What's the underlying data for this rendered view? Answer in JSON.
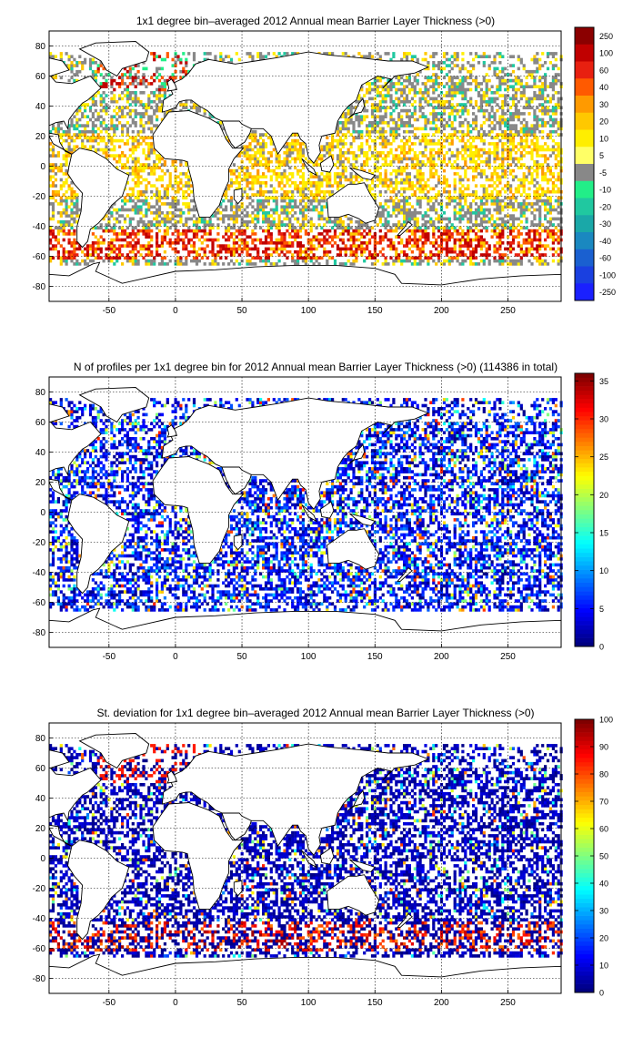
{
  "figure": {
    "panels": [
      {
        "id": "mean",
        "title": "1x1 degree bin–averaged 2012 Annual mean Barrier Layer Thickness (>0)",
        "colorbar": {
          "labels": [
            "250",
            "100",
            "60",
            "40",
            "30",
            "20",
            "10",
            "5",
            "-5",
            "-10",
            "-20",
            "-30",
            "-40",
            "-60",
            "-100",
            "-250"
          ],
          "colors": [
            "#8b0000",
            "#c00000",
            "#e82010",
            "#ff5a00",
            "#ff9a00",
            "#ffc800",
            "#ffee00",
            "#ffff66",
            "#888888",
            "#22ee88",
            "#20c8a0",
            "#1aa8a8",
            "#1a88c0",
            "#1a60d0",
            "#1a40e0",
            "#1a20ff"
          ]
        }
      },
      {
        "id": "count",
        "title": "N of profiles per 1x1 degree bin for 2012 Annual mean Barrier Layer Thickness (>0) (114386 in total)",
        "colorbar": {
          "ticks": [
            "0",
            "5",
            "10",
            "15",
            "20",
            "25",
            "30",
            "35"
          ],
          "max": 36
        }
      },
      {
        "id": "std",
        "title": "St. deviation for 1x1 degree bin–averaged 2012 Annual mean Barrier Layer Thickness (>0)",
        "colorbar": {
          "ticks": [
            "0",
            "10",
            "20",
            "30",
            "40",
            "50",
            "60",
            "70",
            "80",
            "90",
            "100"
          ],
          "max": 100
        }
      }
    ],
    "x_ticks": [
      "-50",
      "0",
      "50",
      "100",
      "150",
      "200",
      "250"
    ],
    "y_ticks": [
      "80",
      "60",
      "40",
      "20",
      "0",
      "-20",
      "-40",
      "-60",
      "-80"
    ]
  },
  "chart_data": [
    {
      "type": "heatmap",
      "title": "1x1 degree bin–averaged 2012 Annual mean Barrier Layer Thickness (>0)",
      "xlim": [
        -95,
        290
      ],
      "ylim": [
        -90,
        90
      ],
      "grid": true,
      "colorbar_levels": [
        250,
        100,
        60,
        40,
        30,
        20,
        10,
        5,
        -5,
        -10,
        -20,
        -30,
        -40,
        -60,
        -100,
        -250
      ]
    },
    {
      "type": "heatmap",
      "title": "N of profiles per 1x1 degree bin for 2012 Annual mean Barrier Layer Thickness (>0) (114386 in total)",
      "xlim": [
        -95,
        290
      ],
      "ylim": [
        -90,
        90
      ],
      "grid": true,
      "colorbar_range": [
        0,
        36
      ]
    },
    {
      "type": "heatmap",
      "title": "St. deviation for 1x1 degree bin–averaged 2012 Annual mean Barrier Layer Thickness (>0)",
      "xlim": [
        -95,
        290
      ],
      "ylim": [
        -90,
        90
      ],
      "grid": true,
      "colorbar_range": [
        0,
        100
      ]
    }
  ]
}
